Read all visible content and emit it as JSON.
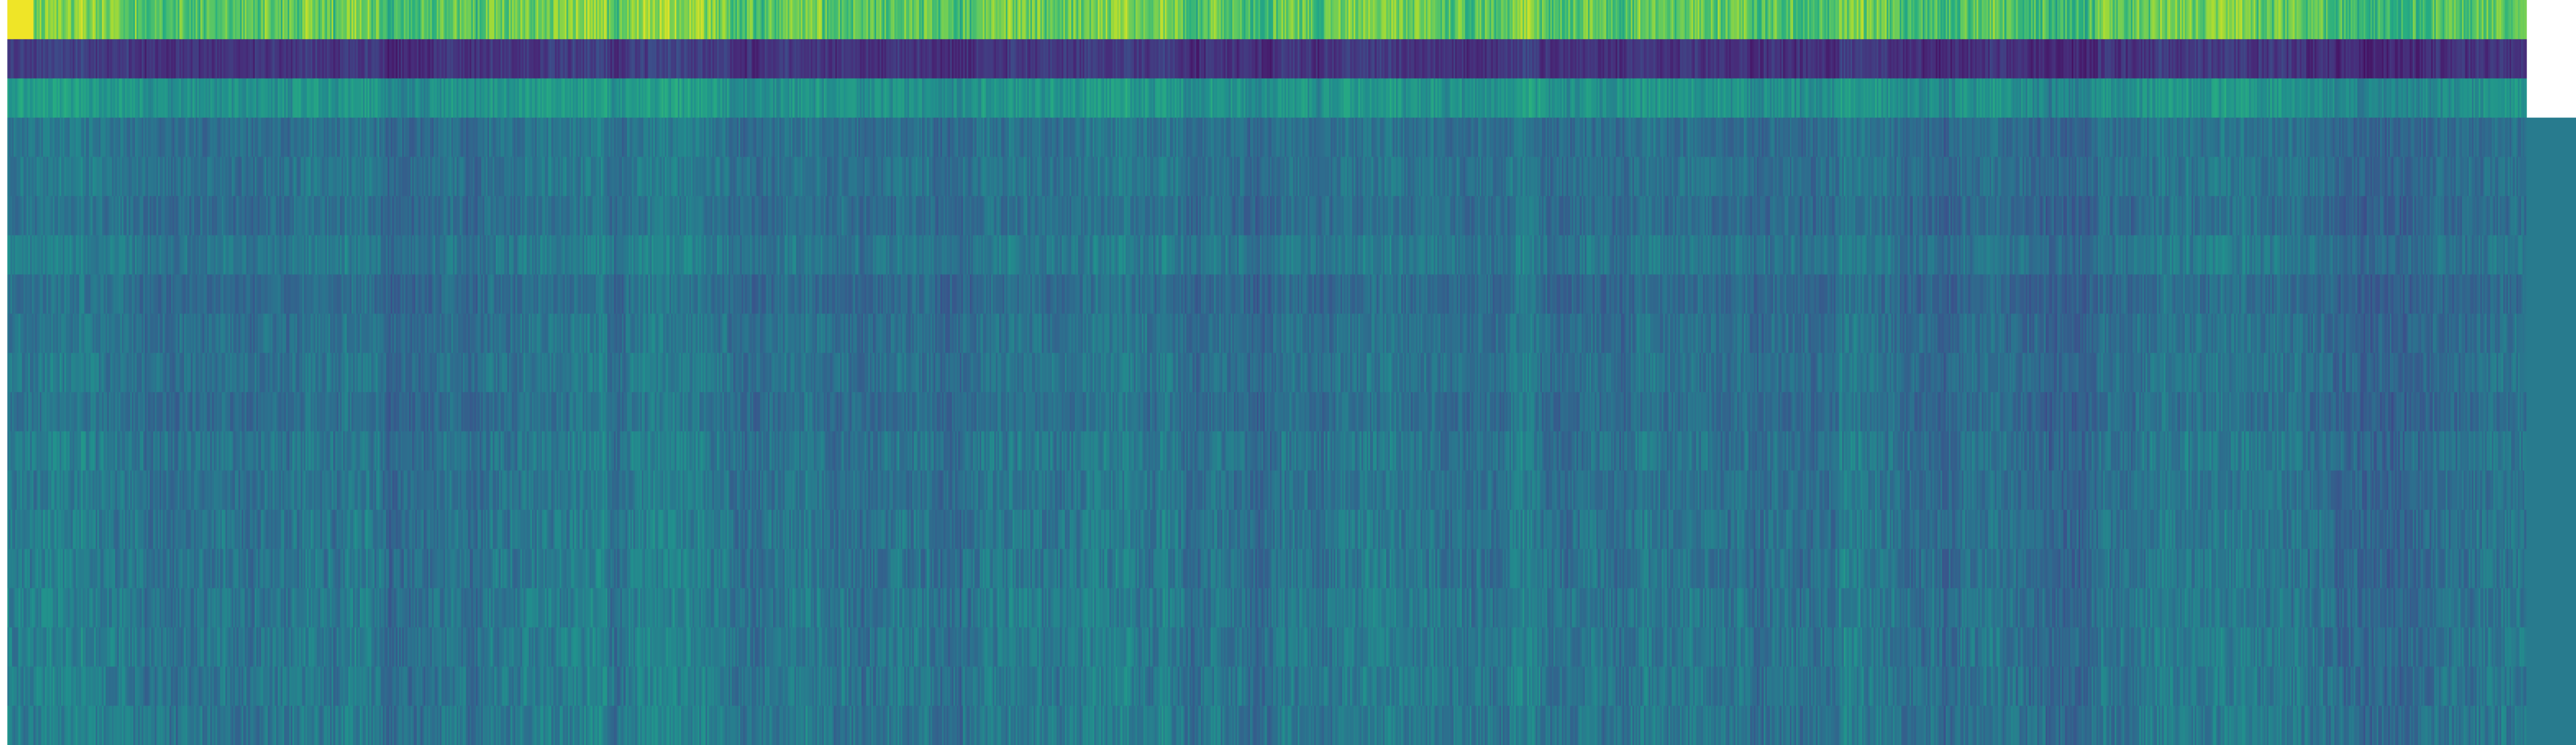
{
  "chart_data": {
    "type": "heatmap",
    "title": "",
    "xlabel": "",
    "ylabel": "",
    "colormap": "viridis",
    "rows": 19,
    "columns": 1536,
    "axes_visible": false,
    "colorbar": false,
    "value_range": [
      0,
      1
    ],
    "row_profiles": [
      {
        "row": 1,
        "mean": 0.76,
        "spread": 0.12
      },
      {
        "row": 2,
        "mean": 0.16,
        "spread": 0.06
      },
      {
        "row": 3,
        "mean": 0.52,
        "spread": 0.08
      },
      {
        "row": 4,
        "mean": 0.38,
        "spread": 0.07
      },
      {
        "row": 5,
        "mean": 0.39,
        "spread": 0.07
      },
      {
        "row": 6,
        "mean": 0.37,
        "spread": 0.07
      },
      {
        "row": 7,
        "mean": 0.41,
        "spread": 0.07
      },
      {
        "row": 8,
        "mean": 0.36,
        "spread": 0.07
      },
      {
        "row": 9,
        "mean": 0.38,
        "spread": 0.07
      },
      {
        "row": 10,
        "mean": 0.39,
        "spread": 0.07
      },
      {
        "row": 11,
        "mean": 0.37,
        "spread": 0.07
      },
      {
        "row": 12,
        "mean": 0.4,
        "spread": 0.08
      },
      {
        "row": 13,
        "mean": 0.39,
        "spread": 0.07
      },
      {
        "row": 14,
        "mean": 0.4,
        "spread": 0.08
      },
      {
        "row": 15,
        "mean": 0.4,
        "spread": 0.08
      },
      {
        "row": 16,
        "mean": 0.41,
        "spread": 0.08
      },
      {
        "row": 17,
        "mean": 0.41,
        "spread": 0.08
      },
      {
        "row": 18,
        "mean": 0.41,
        "spread": 0.08
      },
      {
        "row": 19,
        "mean": 0.41,
        "spread": 0.08
      }
    ]
  }
}
